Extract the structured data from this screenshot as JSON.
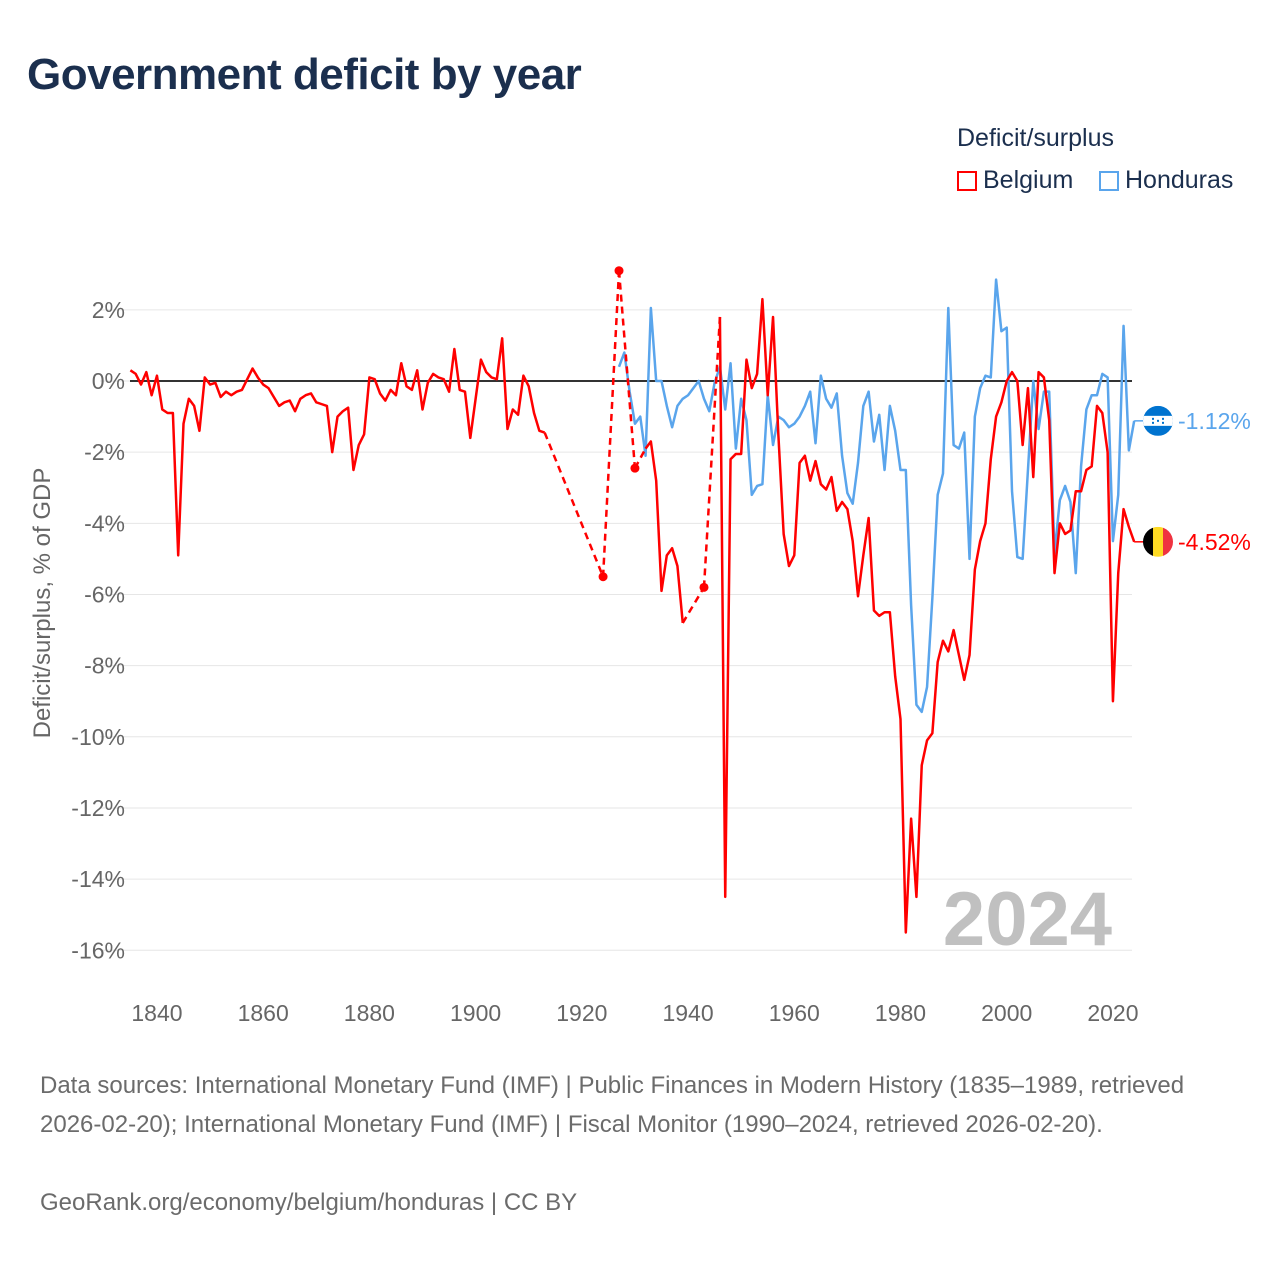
{
  "title": "Government deficit by year",
  "legend": {
    "title": "Deficit/surplus",
    "items": [
      {
        "label": "Belgium",
        "color": "#ff0000"
      },
      {
        "label": "Honduras",
        "color": "#5aa5ec"
      }
    ]
  },
  "footer": {
    "sources": "Data sources: International Monetary Fund (IMF) | Public Finances in Modern History (1835–1989, retrieved 2026-02-20); International Monetary Fund (IMF) | Fiscal Monitor (1990–2024, retrieved 2026-02-20).",
    "credit": "GeoRank.org/economy/belgium/honduras | CC BY"
  },
  "chart_data": {
    "type": "line",
    "title": "Government deficit by year",
    "ylabel": "Deficit/surplus, % of GDP",
    "xlabel": "",
    "xlim": [
      1835,
      2024
    ],
    "ylim": [
      -16,
      3
    ],
    "xticks": [
      1840,
      1860,
      1880,
      1900,
      1920,
      1940,
      1960,
      1980,
      2000,
      2020
    ],
    "yticks": [
      2,
      0,
      -2,
      -4,
      -6,
      -8,
      -10,
      -12,
      -14,
      -16
    ],
    "ytick_labels": [
      "2%",
      "0%",
      "-2%",
      "-4%",
      "-6%",
      "-8%",
      "-10%",
      "-12%",
      "-14%",
      "-16%"
    ],
    "watermark_year": "2024",
    "grid": true,
    "legend_position": "top-right",
    "series": [
      {
        "name": "Belgium",
        "color": "#ff0000",
        "end_label": "-4.52%",
        "flag": "belgium-flag",
        "x": [
          1835,
          1836,
          1837,
          1838,
          1839,
          1840,
          1841,
          1842,
          1843,
          1844,
          1845,
          1846,
          1847,
          1848,
          1849,
          1850,
          1851,
          1852,
          1853,
          1854,
          1855,
          1856,
          1857,
          1858,
          1859,
          1860,
          1861,
          1862,
          1863,
          1864,
          1865,
          1866,
          1867,
          1868,
          1869,
          1870,
          1871,
          1872,
          1873,
          1874,
          1875,
          1876,
          1877,
          1878,
          1879,
          1880,
          1881,
          1882,
          1883,
          1884,
          1885,
          1886,
          1887,
          1888,
          1889,
          1890,
          1891,
          1892,
          1893,
          1894,
          1895,
          1896,
          1897,
          1898,
          1899,
          1900,
          1901,
          1902,
          1903,
          1904,
          1905,
          1906,
          1907,
          1908,
          1909,
          1910,
          1911,
          1912,
          1913,
          1924,
          1927,
          1930,
          1932,
          1933,
          1934,
          1935,
          1936,
          1937,
          1938,
          1939,
          1943,
          1946,
          1947,
          1948,
          1949,
          1950,
          1951,
          1952,
          1953,
          1954,
          1955,
          1956,
          1957,
          1958,
          1959,
          1960,
          1961,
          1962,
          1963,
          1964,
          1965,
          1966,
          1967,
          1968,
          1969,
          1970,
          1971,
          1972,
          1973,
          1974,
          1975,
          1976,
          1977,
          1978,
          1979,
          1980,
          1981,
          1982,
          1983,
          1984,
          1985,
          1986,
          1987,
          1988,
          1989,
          1990,
          1991,
          1992,
          1993,
          1994,
          1995,
          1996,
          1997,
          1998,
          1999,
          2000,
          2001,
          2002,
          2003,
          2004,
          2005,
          2006,
          2007,
          2008,
          2009,
          2010,
          2011,
          2012,
          2013,
          2014,
          2015,
          2016,
          2017,
          2018,
          2019,
          2020,
          2021,
          2022,
          2023,
          2024
        ],
        "y": [
          0.3,
          0.2,
          -0.1,
          0.25,
          -0.4,
          0.15,
          -0.8,
          -0.9,
          -0.9,
          -4.9,
          -1.2,
          -0.5,
          -0.7,
          -1.4,
          0.1,
          -0.1,
          -0.05,
          -0.45,
          -0.3,
          -0.4,
          -0.3,
          -0.25,
          0.05,
          0.35,
          0.1,
          -0.1,
          -0.2,
          -0.45,
          -0.7,
          -0.6,
          -0.55,
          -0.85,
          -0.5,
          -0.4,
          -0.35,
          -0.6,
          -0.65,
          -0.7,
          -2.0,
          -1.0,
          -0.85,
          -0.75,
          -2.5,
          -1.8,
          -1.5,
          0.1,
          0.05,
          -0.35,
          -0.55,
          -0.25,
          -0.4,
          0.5,
          -0.15,
          -0.25,
          0.3,
          -0.8,
          -0.05,
          0.2,
          0.1,
          0.05,
          -0.3,
          0.9,
          -0.25,
          -0.3,
          -1.6,
          -0.5,
          0.6,
          0.25,
          0.1,
          0.05,
          1.2,
          -1.35,
          -0.8,
          -0.95,
          0.15,
          -0.15,
          -0.9,
          -1.4,
          -1.45,
          -5.5,
          3.1,
          -2.45,
          -1.9,
          -1.7,
          -2.8,
          -5.9,
          -4.9,
          -4.7,
          -5.2,
          -6.8,
          -5.8,
          1.8,
          -14.5,
          -2.2,
          -2.05,
          -2.05,
          0.6,
          -0.2,
          0.2,
          2.3,
          -0.4,
          1.8,
          -1.5,
          -4.3,
          -5.2,
          -4.9,
          -2.3,
          -2.1,
          -2.8,
          -2.25,
          -2.9,
          -3.05,
          -2.7,
          -3.65,
          -3.4,
          -3.6,
          -4.5,
          -6.05,
          -4.9,
          -3.85,
          -6.45,
          -6.6,
          -6.5,
          -6.5,
          -8.3,
          -9.5,
          -15.5,
          -12.3,
          -14.5,
          -10.8,
          -10.1,
          -9.9,
          -7.9,
          -7.3,
          -7.6,
          -7.0,
          -7.7,
          -8.4,
          -7.7,
          -5.3,
          -4.5,
          -4.0,
          -2.2,
          -1.0,
          -0.6,
          0.0,
          0.25,
          0.0,
          -1.8,
          -0.2,
          -2.7,
          0.25,
          0.1,
          -1.1,
          -5.4,
          -4.0,
          -4.3,
          -4.2,
          -3.1,
          -3.1,
          -2.5,
          -2.4,
          -0.7,
          -0.9,
          -2.0,
          -9.0,
          -5.4,
          -3.6,
          -4.1,
          -4.52
        ]
      },
      {
        "name": "Honduras",
        "color": "#5aa5ec",
        "end_label": "-1.12%",
        "flag": "honduras-flag",
        "x": [
          1927,
          1928,
          1929,
          1930,
          1931,
          1932,
          1933,
          1934,
          1935,
          1936,
          1937,
          1938,
          1939,
          1940,
          1941,
          1942,
          1943,
          1944,
          1945,
          1946,
          1947,
          1948,
          1949,
          1950,
          1951,
          1952,
          1953,
          1954,
          1955,
          1956,
          1957,
          1958,
          1959,
          1960,
          1961,
          1962,
          1963,
          1964,
          1965,
          1966,
          1967,
          1968,
          1969,
          1970,
          1971,
          1972,
          1973,
          1974,
          1975,
          1976,
          1977,
          1978,
          1979,
          1980,
          1981,
          1982,
          1983,
          1984,
          1985,
          1986,
          1987,
          1988,
          1989,
          1990,
          1991,
          1992,
          1993,
          1994,
          1995,
          1996,
          1997,
          1998,
          1999,
          2000,
          2001,
          2002,
          2003,
          2004,
          2005,
          2006,
          2007,
          2008,
          2009,
          2010,
          2011,
          2012,
          2013,
          2014,
          2015,
          2016,
          2017,
          2018,
          2019,
          2020,
          2021,
          2022,
          2023,
          2024
        ],
        "y": [
          0.4,
          0.8,
          -0.3,
          -1.2,
          -1.0,
          -2.1,
          2.05,
          0.0,
          0.0,
          -0.7,
          -1.3,
          -0.7,
          -0.5,
          -0.4,
          -0.2,
          0.0,
          -0.5,
          -0.85,
          -0.05,
          0.4,
          -0.8,
          0.5,
          -1.9,
          -0.5,
          -1.1,
          -3.2,
          -2.95,
          -2.9,
          -0.4,
          -1.8,
          -1.0,
          -1.1,
          -1.3,
          -1.2,
          -1.0,
          -0.7,
          -0.3,
          -1.75,
          0.15,
          -0.5,
          -0.75,
          -0.35,
          -2.1,
          -3.15,
          -3.45,
          -2.3,
          -0.7,
          -0.3,
          -1.7,
          -0.95,
          -2.5,
          -0.7,
          -1.4,
          -2.5,
          -2.5,
          -6.3,
          -9.1,
          -9.3,
          -8.6,
          -6.1,
          -3.2,
          -2.6,
          2.05,
          -1.8,
          -1.9,
          -1.45,
          -5.0,
          -1.0,
          -0.2,
          0.15,
          0.1,
          2.85,
          1.4,
          1.5,
          -3.1,
          -4.95,
          -5.0,
          -2.5,
          0.0,
          -1.35,
          -0.3,
          -0.3,
          -4.85,
          -3.35,
          -2.95,
          -3.4,
          -5.4,
          -2.4,
          -0.8,
          -0.4,
          -0.4,
          0.2,
          0.1,
          -4.5,
          -3.2,
          1.55,
          -1.95,
          -1.12
        ]
      }
    ]
  }
}
